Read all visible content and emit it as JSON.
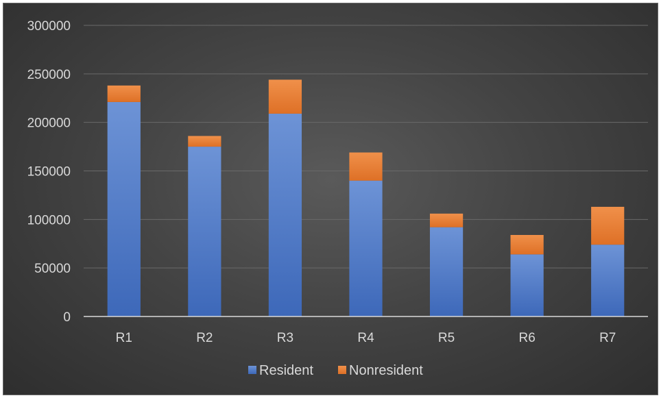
{
  "chart_data": {
    "type": "bar",
    "stacked": true,
    "categories": [
      "R1",
      "R2",
      "R3",
      "R4",
      "R5",
      "R6",
      "R7"
    ],
    "series": [
      {
        "name": "Resident",
        "values": [
          221000,
          175000,
          209000,
          140000,
          92000,
          64000,
          74000
        ],
        "color": "#4472c4"
      },
      {
        "name": "Nonresident",
        "values": [
          17000,
          11000,
          35000,
          29000,
          14000,
          20000,
          39000
        ],
        "color": "#ed7d31"
      }
    ],
    "yticks": [
      "0",
      "50000",
      "100000",
      "150000",
      "200000",
      "250000",
      "300000"
    ],
    "ylim": [
      0,
      300000
    ],
    "grid": true,
    "legend": "bottom",
    "title": "",
    "xlabel": "",
    "ylabel": ""
  }
}
